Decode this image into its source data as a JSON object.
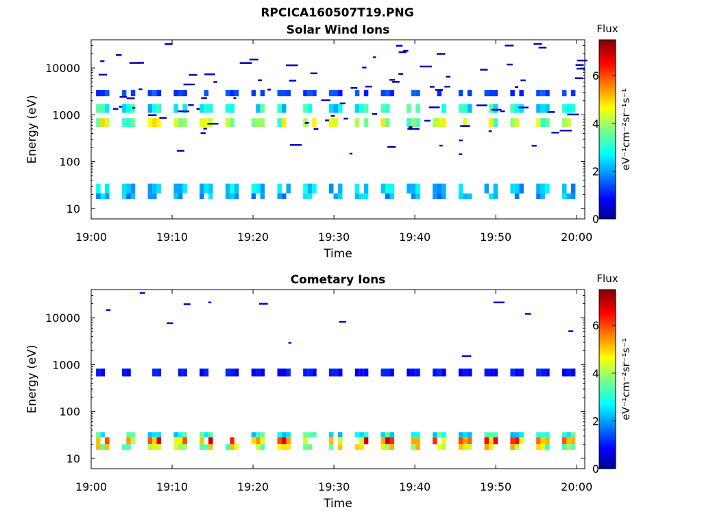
{
  "figure_title": "RPCICA160507T19.PNG",
  "chart_data": [
    {
      "type": "heatmap",
      "title": "Solar Wind Ions",
      "xlabel": "Time",
      "ylabel": "Energy (eV)",
      "x_ticks": [
        "19:00",
        "19:10",
        "19:20",
        "19:30",
        "19:40",
        "19:50",
        "20:00"
      ],
      "x_range_minutes": [
        0,
        61
      ],
      "y_scale": "log",
      "y_ticks": [
        "10",
        "100",
        "1000",
        "10000"
      ],
      "y_range": [
        6,
        40000
      ],
      "colorbar": {
        "title": "Flux",
        "label": "eV⁻¹cm⁻²sr⁻¹s⁻¹",
        "ticks": [
          "0",
          "2",
          "4",
          "6"
        ],
        "range": [
          0,
          7.5
        ],
        "colormap": "jet"
      },
      "bands": [
        {
          "energy_eV": [
            550,
            850
          ],
          "flux": 4.0
        },
        {
          "energy_eV": [
            1100,
            1700
          ],
          "flux": 2.9
        },
        {
          "energy_eV": [
            2500,
            3400
          ],
          "flux": 1.4
        },
        {
          "energy_eV": [
            21,
            34
          ],
          "flux": 2.4
        },
        {
          "energy_eV": [
            16,
            21
          ],
          "flux": 2.2
        }
      ],
      "sparse_high_energy_flux": 0.4
    },
    {
      "type": "heatmap",
      "title": "Cometary Ions",
      "xlabel": "Time",
      "ylabel": "Energy (eV)",
      "x_ticks": [
        "19:00",
        "19:10",
        "19:20",
        "19:30",
        "19:40",
        "19:50",
        "20:00"
      ],
      "x_range_minutes": [
        0,
        61
      ],
      "y_scale": "log",
      "y_ticks": [
        "10",
        "100",
        "1000",
        "10000"
      ],
      "y_range": [
        6,
        40000
      ],
      "colorbar": {
        "title": "Flux",
        "label": "eV⁻¹cm⁻²sr⁻¹s⁻¹",
        "ticks": [
          "0",
          "2",
          "4",
          "6"
        ],
        "range": [
          0,
          7.5
        ],
        "colormap": "jet"
      },
      "bands": [
        {
          "energy_eV": [
            560,
            820
          ],
          "flux": 1.0
        },
        {
          "energy_eV": [
            28,
            36
          ],
          "flux": 3.0
        },
        {
          "energy_eV": [
            20,
            28
          ],
          "flux": 5.6
        },
        {
          "energy_eV": [
            15,
            20
          ],
          "flux": 4.3
        }
      ],
      "sparse_high_energy_flux": 0.8
    }
  ]
}
